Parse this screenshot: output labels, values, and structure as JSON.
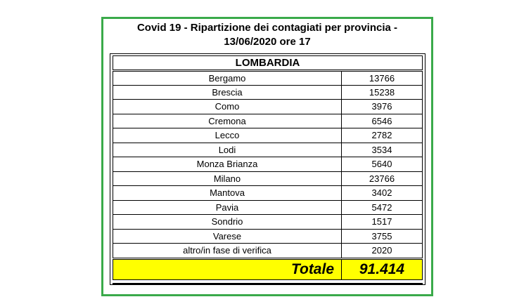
{
  "title_line1": "Covid 19 - Ripartizione dei contagiati per provincia -",
  "title_line2": "13/06/2020 ore 17",
  "region": "LOMBARDIA",
  "rows": [
    {
      "name": "Bergamo",
      "value": "13766"
    },
    {
      "name": "Brescia",
      "value": "15238"
    },
    {
      "name": "Como",
      "value": "3976"
    },
    {
      "name": "Cremona",
      "value": "6546"
    },
    {
      "name": "Lecco",
      "value": "2782"
    },
    {
      "name": "Lodi",
      "value": "3534"
    },
    {
      "name": "Monza Brianza",
      "value": "5640"
    },
    {
      "name": "Milano",
      "value": "23766"
    },
    {
      "name": "Mantova",
      "value": "3402"
    },
    {
      "name": "Pavia",
      "value": "5472"
    },
    {
      "name": "Sondrio",
      "value": "1517"
    },
    {
      "name": "Varese",
      "value": "3755"
    },
    {
      "name": "altro/in fase di verifica",
      "value": "2020"
    }
  ],
  "total_label": "Totale",
  "total_value": "91.414",
  "colors": {
    "frame": "#3aaa4a",
    "total_bg": "#ffff00"
  }
}
